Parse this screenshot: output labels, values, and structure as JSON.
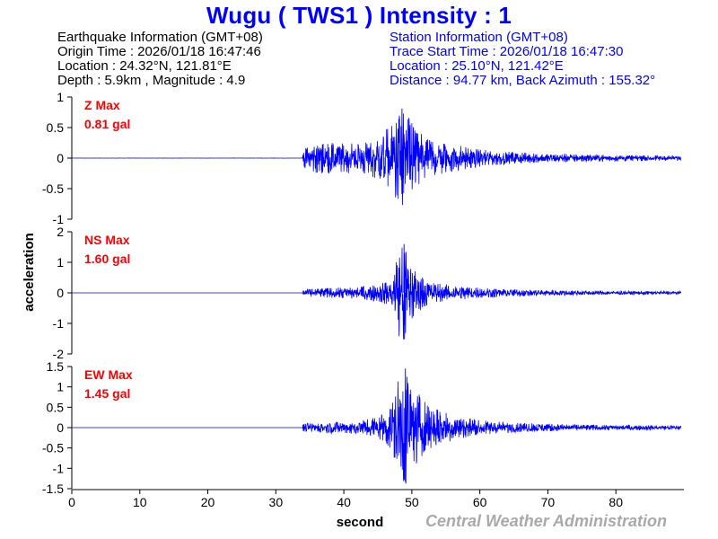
{
  "title": "Wugu ( TWS1 ) Intensity : 1",
  "earthquake_info": {
    "header": "Earthquake Information  (GMT+08)",
    "origin_time": "Origin Time : 2026/01/18 16:47:46",
    "location": "Location : 24.32°N, 121.81°E",
    "depth_magnitude": "Depth : 5.9km , Magnitude : 4.9"
  },
  "station_info": {
    "header": "Station Information  (GMT+08)",
    "trace_start": "Trace Start Time : 2026/01/18 16:47:30",
    "location": "Location : 25.10°N, 121.42°E",
    "distance": "Distance : 94.77 km, Back Azimuth : 155.32°"
  },
  "credit": "Central Weather Administration",
  "colors": {
    "title": "#0000ff",
    "trace": "#0000ff",
    "max_label": "#ff0000",
    "station_text": "#0000ff",
    "credit": "#a9a9a9"
  },
  "chart_data": {
    "type": "line",
    "xlabel": "second",
    "ylabel": "acceleration",
    "xlim": [
      0,
      90
    ],
    "x_ticks": [
      0,
      10,
      20,
      30,
      40,
      50,
      60,
      70,
      80
    ],
    "grid": false,
    "panels": [
      {
        "component": "Z",
        "max_label": "Z Max",
        "max_value_label": "0.81 gal",
        "max_gal": 0.81,
        "ylim": [
          -1,
          1
        ],
        "y_ticks": [
          -1,
          -0.5,
          0,
          0.5,
          1
        ],
        "y_tick_labels": [
          "-1",
          "-0.5",
          "0",
          "0.5",
          "1"
        ],
        "envelope": {
          "t": [
            0,
            33.9,
            34.0,
            36,
            40,
            43,
            45,
            47,
            48.5,
            49.5,
            50.5,
            52,
            55,
            60,
            65,
            70,
            80,
            89.5
          ],
          "amp": [
            0.005,
            0.005,
            0.15,
            0.26,
            0.25,
            0.26,
            0.35,
            0.55,
            0.81,
            0.7,
            0.5,
            0.35,
            0.25,
            0.14,
            0.1,
            0.07,
            0.05,
            0.04
          ]
        }
      },
      {
        "component": "NS",
        "max_label": "NS Max",
        "max_value_label": "1.60 gal",
        "max_gal": 1.6,
        "ylim": [
          -2,
          2
        ],
        "y_ticks": [
          -2,
          -1,
          0,
          1,
          2
        ],
        "y_tick_labels": [
          "-2",
          "-1",
          "0",
          "1",
          "2"
        ],
        "envelope": {
          "t": [
            0,
            33.9,
            34.0,
            38,
            42,
            45,
            47,
            48.0,
            48.8,
            49.8,
            51,
            53,
            57,
            62,
            70,
            80,
            89.5
          ],
          "amp": [
            0.005,
            0.005,
            0.12,
            0.16,
            0.2,
            0.28,
            0.45,
            1.45,
            1.6,
            1.0,
            0.6,
            0.35,
            0.22,
            0.14,
            0.09,
            0.06,
            0.05
          ]
        }
      },
      {
        "component": "EW",
        "max_label": "EW Max",
        "max_value_label": "1.45 gal",
        "max_gal": 1.45,
        "ylim": [
          -1.5,
          1.5
        ],
        "y_ticks": [
          -1.5,
          -1,
          -0.5,
          0,
          0.5,
          1,
          1.5
        ],
        "y_tick_labels": [
          "-1.5",
          "-1",
          "-0.5",
          "0",
          "0.5",
          "1",
          "1.5"
        ],
        "envelope": {
          "t": [
            0,
            33.9,
            34.0,
            38,
            42,
            45,
            47,
            48.2,
            49.0,
            50.0,
            51.5,
            53,
            56,
            60,
            65,
            75,
            89.5
          ],
          "amp": [
            0.005,
            0.005,
            0.1,
            0.14,
            0.16,
            0.28,
            0.55,
            1.3,
            1.45,
            1.0,
            0.75,
            0.5,
            0.32,
            0.18,
            0.12,
            0.07,
            0.05
          ]
        }
      }
    ]
  }
}
